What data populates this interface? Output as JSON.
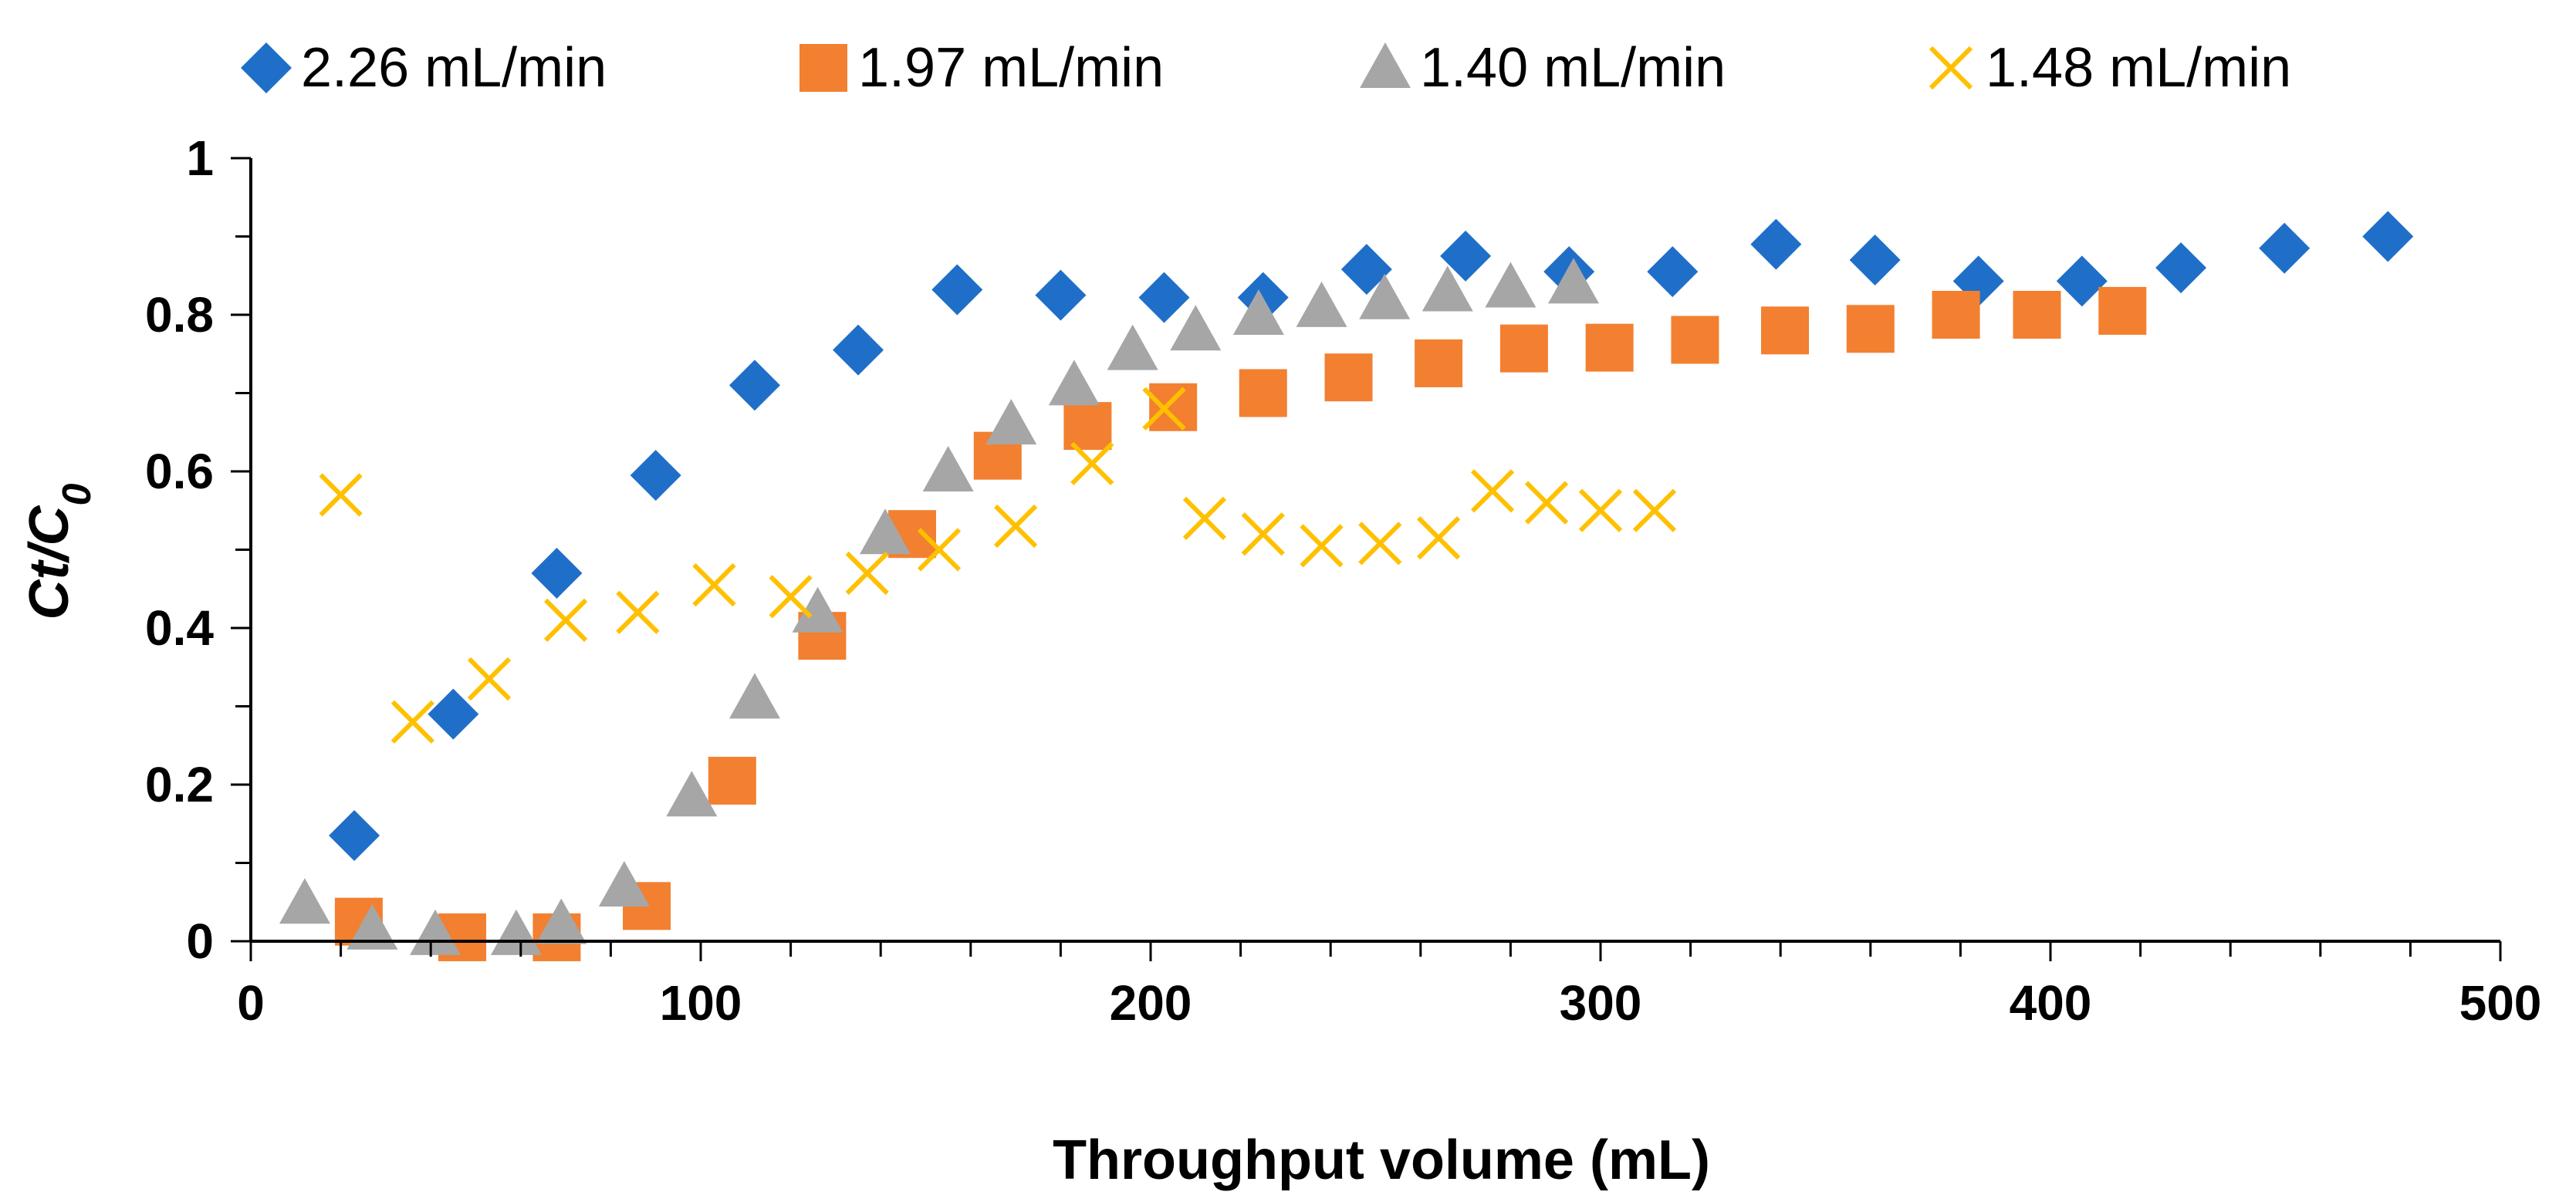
{
  "chart_data": {
    "type": "scatter",
    "title": "",
    "xlabel": "Throughput volume (mL)",
    "ylabel": {
      "main": "Ct/C",
      "subscript": "0"
    },
    "xlim": [
      0,
      500
    ],
    "ylim": [
      0,
      1
    ],
    "x_ticks": [
      0,
      100,
      200,
      300,
      400,
      500
    ],
    "x_tick_labels": [
      "0",
      "100",
      "200",
      "300",
      "400",
      "500"
    ],
    "y_ticks": [
      0,
      0.2,
      0.4,
      0.6,
      0.8,
      1
    ],
    "y_tick_labels": [
      "0",
      "0.2",
      "0.4",
      "0.6",
      "0.8",
      "1"
    ],
    "x_minor_step": 20,
    "y_minor_step": 0.1,
    "grid": false,
    "legend_position": "top",
    "series": [
      {
        "name": "2.26 mL/min",
        "marker": "diamond",
        "color": "#1F6FC8",
        "points": [
          [
            23,
            0.135
          ],
          [
            45,
            0.29
          ],
          [
            68,
            0.47
          ],
          [
            90,
            0.595
          ],
          [
            112,
            0.71
          ],
          [
            135,
            0.755
          ],
          [
            157,
            0.832
          ],
          [
            180,
            0.825
          ],
          [
            203,
            0.822
          ],
          [
            225,
            0.822
          ],
          [
            248,
            0.858
          ],
          [
            270,
            0.875
          ],
          [
            293,
            0.855
          ],
          [
            316,
            0.855
          ],
          [
            339,
            0.89
          ],
          [
            361,
            0.87
          ],
          [
            384,
            0.843
          ],
          [
            407,
            0.843
          ],
          [
            429,
            0.86
          ],
          [
            452,
            0.885
          ],
          [
            475,
            0.9
          ]
        ]
      },
      {
        "name": "1.97 mL/min",
        "marker": "square",
        "color": "#F28030",
        "points": [
          [
            24,
            0.025
          ],
          [
            47,
            0.005
          ],
          [
            68,
            0.005
          ],
          [
            88,
            0.045
          ],
          [
            107,
            0.205
          ],
          [
            127,
            0.39
          ],
          [
            147,
            0.52
          ],
          [
            166,
            0.62
          ],
          [
            186,
            0.658
          ],
          [
            205,
            0.682
          ],
          [
            225,
            0.7
          ],
          [
            244,
            0.72
          ],
          [
            264,
            0.738
          ],
          [
            283,
            0.757
          ],
          [
            302,
            0.758
          ],
          [
            321,
            0.768
          ],
          [
            341,
            0.78
          ],
          [
            360,
            0.782
          ],
          [
            379,
            0.8
          ],
          [
            397,
            0.8
          ],
          [
            416,
            0.805
          ]
        ]
      },
      {
        "name": "1.40 mL/min",
        "marker": "triangle",
        "color": "#A6A6A6",
        "points": [
          [
            12,
            0.048
          ],
          [
            27,
            0.015
          ],
          [
            41,
            0.008
          ],
          [
            59,
            0.008
          ],
          [
            69,
            0.022
          ],
          [
            83,
            0.07
          ],
          [
            98,
            0.185
          ],
          [
            112,
            0.31
          ],
          [
            126,
            0.42
          ],
          [
            141,
            0.52
          ],
          [
            155,
            0.6
          ],
          [
            169,
            0.66
          ],
          [
            183,
            0.71
          ],
          [
            196,
            0.755
          ],
          [
            210,
            0.78
          ],
          [
            224,
            0.8
          ],
          [
            238,
            0.81
          ],
          [
            252,
            0.82
          ],
          [
            266,
            0.83
          ],
          [
            280,
            0.835
          ],
          [
            294,
            0.84
          ]
        ]
      },
      {
        "name": "1.48 mL/min",
        "marker": "x",
        "color": "#FFC000",
        "points": [
          [
            20,
            0.57
          ],
          [
            36,
            0.28
          ],
          [
            53,
            0.335
          ],
          [
            70,
            0.41
          ],
          [
            86,
            0.42
          ],
          [
            103,
            0.455
          ],
          [
            120,
            0.44
          ],
          [
            137,
            0.47
          ],
          [
            153,
            0.5
          ],
          [
            170,
            0.53
          ],
          [
            187,
            0.61
          ],
          [
            203,
            0.68
          ],
          [
            212,
            0.54
          ],
          [
            225,
            0.52
          ],
          [
            238,
            0.505
          ],
          [
            251,
            0.508
          ],
          [
            264,
            0.515
          ],
          [
            276,
            0.575
          ],
          [
            288,
            0.56
          ],
          [
            300,
            0.55
          ],
          [
            312,
            0.55
          ]
        ]
      }
    ]
  }
}
